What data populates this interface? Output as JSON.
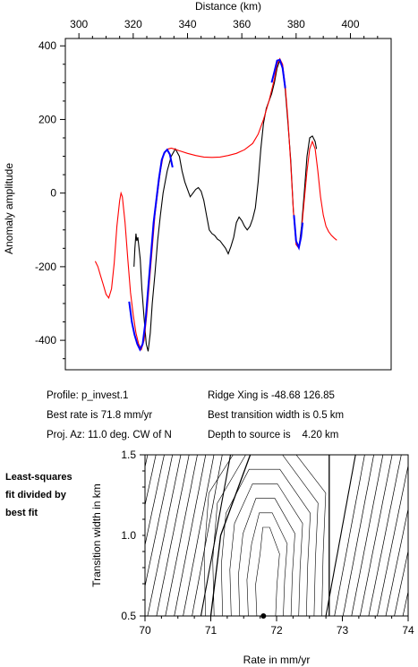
{
  "chart_data": [
    {
      "type": "line",
      "xlabel": "Distance (km)",
      "ylabel": "Anomaly amplitude",
      "xlim": [
        295,
        415
      ],
      "ylim": [
        -480,
        420
      ],
      "x_axis_position": "top",
      "x_ticks": [
        "300",
        "320",
        "340",
        "360",
        "380",
        "400"
      ],
      "y_ticks": [
        "400",
        "200",
        "0",
        "-200",
        "-400"
      ],
      "grid": false,
      "series": [
        {
          "color": "#000000",
          "points": [
            [
              320.3,
              -200
            ],
            [
              320.6,
              -150
            ],
            [
              321,
              -110
            ],
            [
              321.3,
              -130
            ],
            [
              321.7,
              -120
            ],
            [
              322,
              -140
            ],
            [
              322.6,
              -180
            ],
            [
              323.2,
              -260
            ],
            [
              324,
              -340
            ],
            [
              324.8,
              -410
            ],
            [
              325.5,
              -430
            ],
            [
              326.3,
              -380
            ],
            [
              327,
              -300
            ],
            [
              328,
              -220
            ],
            [
              329,
              -130
            ],
            [
              330,
              -60
            ],
            [
              331,
              0
            ],
            [
              332.5,
              60
            ],
            [
              334,
              100
            ],
            [
              335.5,
              120
            ],
            [
              337,
              100
            ],
            [
              338,
              60
            ],
            [
              339,
              30
            ],
            [
              340,
              10
            ],
            [
              341,
              -10
            ],
            [
              342,
              0
            ],
            [
              343,
              10
            ],
            [
              344,
              15
            ],
            [
              345,
              5
            ],
            [
              346,
              -20
            ],
            [
              347,
              -60
            ],
            [
              348,
              -100
            ],
            [
              349,
              -110
            ],
            [
              350,
              -115
            ],
            [
              351,
              -125
            ],
            [
              352,
              -130
            ],
            [
              353,
              -140
            ],
            [
              354,
              -150
            ],
            [
              355,
              -165
            ],
            [
              356,
              -145
            ],
            [
              357,
              -120
            ],
            [
              358,
              -80
            ],
            [
              359,
              -65
            ],
            [
              360,
              -75
            ],
            [
              361,
              -90
            ],
            [
              362,
              -100
            ],
            [
              363,
              -90
            ],
            [
              364,
              -70
            ],
            [
              365,
              -40
            ],
            [
              366,
              30
            ],
            [
              367,
              120
            ],
            [
              368,
              190
            ],
            [
              369,
              230
            ],
            [
              370,
              250
            ],
            [
              371,
              270
            ],
            [
              372,
              300
            ],
            [
              373,
              340
            ],
            [
              374,
              360
            ],
            [
              375,
              340
            ],
            [
              376,
              280
            ],
            [
              377,
              190
            ],
            [
              378,
              90
            ],
            [
              379,
              -50
            ],
            [
              380,
              -130
            ],
            [
              381,
              -150
            ],
            [
              382,
              -90
            ],
            [
              383,
              0
            ],
            [
              384,
              100
            ],
            [
              385,
              150
            ],
            [
              386,
              155
            ],
            [
              387,
              140
            ],
            [
              387.5,
              120
            ]
          ]
        },
        {
          "color": "#ff0000",
          "points": [
            [
              306,
              -185
            ],
            [
              307,
              -200
            ],
            [
              308,
              -225
            ],
            [
              309,
              -250
            ],
            [
              310,
              -275
            ],
            [
              311,
              -285
            ],
            [
              312,
              -260
            ],
            [
              313,
              -190
            ],
            [
              314,
              -90
            ],
            [
              315,
              -20
            ],
            [
              315.5,
              0
            ],
            [
              316,
              -10
            ],
            [
              317,
              -80
            ],
            [
              318,
              -180
            ],
            [
              319,
              -270
            ],
            [
              320,
              -330
            ],
            [
              321,
              -380
            ],
            [
              322,
              -410
            ],
            [
              323,
              -425
            ],
            [
              324,
              -400
            ],
            [
              325,
              -330
            ],
            [
              326,
              -240
            ],
            [
              327,
              -150
            ],
            [
              328,
              -60
            ],
            [
              329,
              0
            ],
            [
              330,
              60
            ],
            [
              331,
              100
            ],
            [
              332,
              115
            ],
            [
              333,
              120
            ],
            [
              334,
              122
            ],
            [
              335,
              120
            ],
            [
              337,
              115
            ],
            [
              340,
              108
            ],
            [
              343,
              102
            ],
            [
              346,
              98
            ],
            [
              349,
              97
            ],
            [
              352,
              98
            ],
            [
              355,
              102
            ],
            [
              358,
              108
            ],
            [
              361,
              118
            ],
            [
              364,
              135
            ],
            [
              366,
              160
            ],
            [
              368,
              200
            ],
            [
              370,
              250
            ],
            [
              372,
              310
            ],
            [
              373,
              350
            ],
            [
              374,
              365
            ],
            [
              375,
              350
            ],
            [
              376,
              290
            ],
            [
              377,
              200
            ],
            [
              378,
              80
            ],
            [
              379,
              -50
            ],
            [
              380,
              -140
            ],
            [
              381,
              -150
            ],
            [
              382,
              -100
            ],
            [
              383,
              -20
            ],
            [
              384,
              60
            ],
            [
              385,
              120
            ],
            [
              386,
              140
            ],
            [
              387,
              120
            ],
            [
              388,
              60
            ],
            [
              389,
              -10
            ],
            [
              390,
              -60
            ],
            [
              391,
              -90
            ],
            [
              392,
              -105
            ],
            [
              393,
              -115
            ],
            [
              394,
              -122
            ],
            [
              395,
              -128
            ]
          ]
        },
        {
          "color": "#0000ff",
          "segments": [
            [
              [
                318.5,
                -295
              ],
              [
                319.5,
                -350
              ],
              [
                320.5,
                -385
              ],
              [
                321.5,
                -410
              ],
              [
                322.5,
                -425
              ],
              [
                323.5,
                -410
              ],
              [
                324.5,
                -350
              ],
              [
                325.5,
                -260
              ],
              [
                326.5,
                -170
              ],
              [
                327.5,
                -80
              ],
              [
                328.5,
                -20
              ],
              [
                329.5,
                40
              ],
              [
                330.5,
                90
              ],
              [
                331.5,
                110
              ],
              [
                332.5,
                118
              ],
              [
                333.5,
                105
              ],
              [
                334.5,
                70
              ]
            ],
            [
              [
                371,
                300
              ],
              [
                372,
                330
              ],
              [
                373,
                360
              ],
              [
                374,
                362
              ],
              [
                375,
                340
              ],
              [
                376,
                285
              ]
            ],
            [
              [
                379.2,
                -60
              ],
              [
                380,
                -130
              ],
              [
                381,
                -148
              ],
              [
                381.8,
                -120
              ],
              [
                382.4,
                -80
              ]
            ]
          ]
        }
      ]
    },
    {
      "type": "contour",
      "xlabel": "Rate in mm/yr",
      "ylabel": "Transition width in km",
      "xlim": [
        70,
        74
      ],
      "ylim": [
        0.5,
        1.5
      ],
      "x_ticks": [
        "70",
        "71",
        "72",
        "73",
        "74"
      ],
      "y_ticks": [
        "1.5",
        "1.0",
        "0.5"
      ],
      "title": "Least-squares fit divided by best fit",
      "best_fit_point": [
        71.8,
        0.5
      ]
    }
  ],
  "info": {
    "profile": "Profile: p_invest.1",
    "best_rate": "Best rate is 71.8 mm/yr",
    "proj_az": "Proj. Az: 11.0 deg. CW of N",
    "ridge_xing": "Ridge Xing is -48.68 126.85",
    "best_width": "Best transition width is 0.5 km",
    "depth": "Depth to source is    4.20 km"
  },
  "side_label": {
    "line1": "Least-squares",
    "line2": "fit divided by",
    "line3": "best fit"
  }
}
